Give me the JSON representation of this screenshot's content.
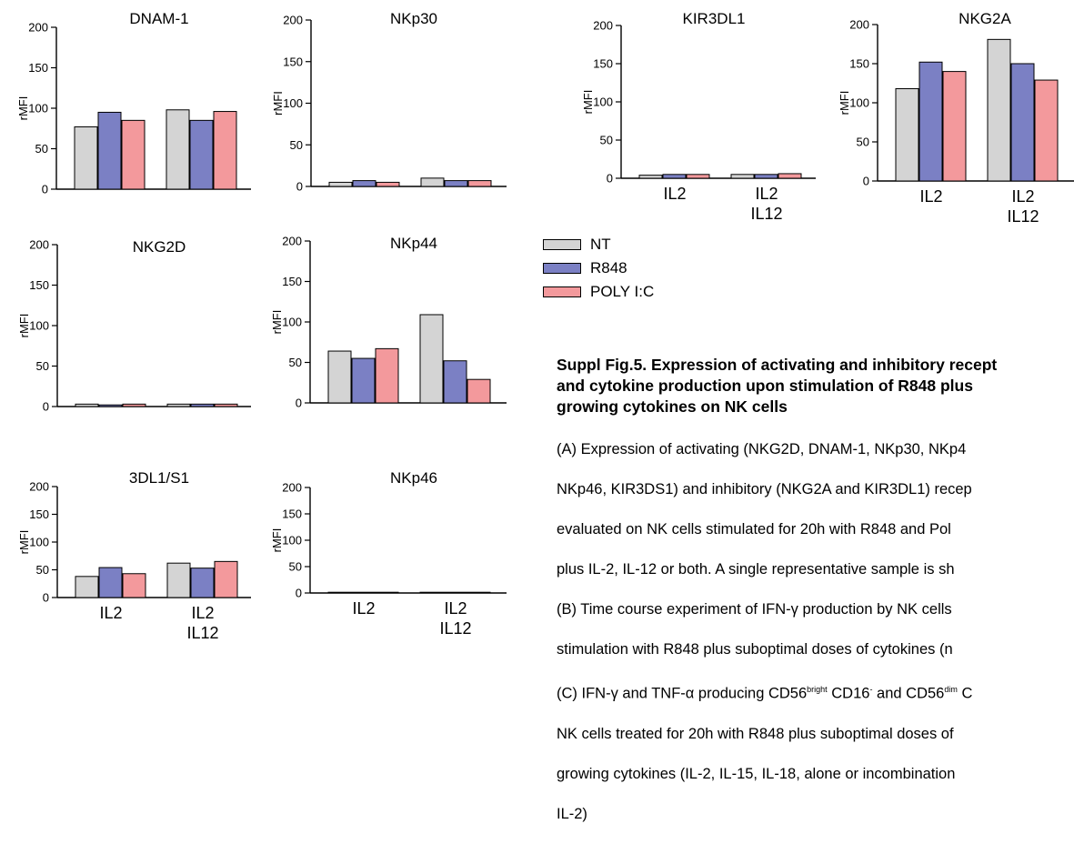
{
  "colors": {
    "NT": "#d4d4d4",
    "R848": "#7b80c4",
    "POLY I:C": "#f3999c"
  },
  "legend": {
    "items": [
      "NT",
      "R848",
      "POLY I:C"
    ]
  },
  "chart_data": [
    {
      "type": "bar",
      "title": "DNAM-1",
      "ylabel": "rMFI",
      "ylim": [
        0,
        200
      ],
      "yticks": [
        0,
        50,
        100,
        150,
        200
      ],
      "categories": [
        [
          "IL2"
        ],
        [
          "IL2",
          "IL12"
        ]
      ],
      "show_xlabels": false,
      "series": [
        {
          "name": "NT",
          "values": [
            77,
            98
          ]
        },
        {
          "name": "R848",
          "values": [
            95,
            85
          ]
        },
        {
          "name": "POLY I:C",
          "values": [
            85,
            96
          ]
        }
      ]
    },
    {
      "type": "bar",
      "title": "NKp30",
      "ylabel": "rMFI",
      "ylim": [
        0,
        200
      ],
      "yticks": [
        0,
        50,
        100,
        150,
        200
      ],
      "categories": [
        [
          "IL2"
        ],
        [
          "IL2",
          "IL12"
        ]
      ],
      "show_xlabels": false,
      "series": [
        {
          "name": "NT",
          "values": [
            5,
            10
          ]
        },
        {
          "name": "R848",
          "values": [
            7,
            7
          ]
        },
        {
          "name": "POLY I:C",
          "values": [
            5,
            7
          ]
        }
      ]
    },
    {
      "type": "bar",
      "title": "KIR3DL1",
      "ylabel": "rMFI",
      "ylim": [
        0,
        200
      ],
      "yticks": [
        0,
        50,
        100,
        150,
        200
      ],
      "categories": [
        [
          "IL2"
        ],
        [
          "IL2",
          "IL12"
        ]
      ],
      "show_xlabels": true,
      "series": [
        {
          "name": "NT",
          "values": [
            4,
            5
          ]
        },
        {
          "name": "R848",
          "values": [
            5,
            5
          ]
        },
        {
          "name": "POLY I:C",
          "values": [
            5,
            6
          ]
        }
      ]
    },
    {
      "type": "bar",
      "title": "NKG2A",
      "ylabel": "rMFI",
      "ylim": [
        0,
        200
      ],
      "yticks": [
        0,
        50,
        100,
        150,
        200
      ],
      "categories": [
        [
          "IL2"
        ],
        [
          "IL2",
          "IL12"
        ]
      ],
      "show_xlabels": true,
      "series": [
        {
          "name": "NT",
          "values": [
            118,
            181
          ]
        },
        {
          "name": "R848",
          "values": [
            152,
            150
          ]
        },
        {
          "name": "POLY I:C",
          "values": [
            140,
            129
          ]
        }
      ]
    },
    {
      "type": "bar",
      "title": "NKG2D",
      "ylabel": "rMFI",
      "ylim": [
        0,
        200
      ],
      "yticks": [
        0,
        50,
        100,
        150,
        200
      ],
      "categories": [
        [
          "IL2"
        ],
        [
          "IL2",
          "IL12"
        ]
      ],
      "show_xlabels": false,
      "series": [
        {
          "name": "NT",
          "values": [
            3,
            3
          ]
        },
        {
          "name": "R848",
          "values": [
            2,
            3
          ]
        },
        {
          "name": "POLY I:C",
          "values": [
            3,
            3
          ]
        }
      ]
    },
    {
      "type": "bar",
      "title": "NKp44",
      "ylabel": "rMFI",
      "ylim": [
        0,
        200
      ],
      "yticks": [
        0,
        50,
        100,
        150,
        200
      ],
      "categories": [
        [
          "IL2"
        ],
        [
          "IL2",
          "IL12"
        ]
      ],
      "show_xlabels": false,
      "series": [
        {
          "name": "NT",
          "values": [
            64,
            109
          ]
        },
        {
          "name": "R848",
          "values": [
            55,
            52
          ]
        },
        {
          "name": "POLY I:C",
          "values": [
            67,
            29
          ]
        }
      ]
    },
    {
      "type": "bar",
      "title": "3DL1/S1",
      "ylabel": "rMFI",
      "ylim": [
        0,
        200
      ],
      "yticks": [
        0,
        50,
        100,
        150,
        200
      ],
      "categories": [
        [
          "IL2"
        ],
        [
          "IL2",
          "IL12"
        ]
      ],
      "show_xlabels": true,
      "series": [
        {
          "name": "NT",
          "values": [
            38,
            62
          ]
        },
        {
          "name": "R848",
          "values": [
            54,
            53
          ]
        },
        {
          "name": "POLY I:C",
          "values": [
            43,
            65
          ]
        }
      ]
    },
    {
      "type": "bar",
      "title": "NKp46",
      "ylabel": "rMFI",
      "ylim": [
        0,
        200
      ],
      "yticks": [
        0,
        50,
        100,
        150,
        200
      ],
      "categories": [
        [
          "IL2"
        ],
        [
          "IL2",
          "IL12"
        ]
      ],
      "show_xlabels": true,
      "series": [
        {
          "name": "NT",
          "values": [
            0.5,
            0.5
          ]
        },
        {
          "name": "R848",
          "values": [
            0.5,
            0.5
          ]
        },
        {
          "name": "POLY I:C",
          "values": [
            0.5,
            0.5
          ]
        }
      ]
    }
  ],
  "caption": {
    "title": "Suppl Fig.5. Expression of activating and inhibitory recept\nand cytokine production upon stimulation of R848 plus\ngrowing cytokines on NK cells",
    "line1": "(A) Expression of activating (NKG2D, DNAM-1, NKp30, NKp4",
    "line2": "NKp46, KIR3DS1) and inhibitory (NKG2A and KIR3DL1) recep",
    "line3": "evaluated on NK cells stimulated for 20h with R848 and Pol",
    "line4": "plus IL-2, IL-12 or both. A single representative sample is sh",
    "line5": "(B) Time course experiment of IFN-γ production by NK cells",
    "line6": "stimulation with R848 plus suboptimal doses of cytokines (n",
    "line7_a": "(C) IFN-γ and TNF-α producing CD56",
    "line7_sup1": "bright",
    "line7_b": " CD16",
    "line7_sup2": "-",
    "line7_c": " and CD56",
    "line7_sup3": "dim",
    "line7_d": " C",
    "line8": "NK cells treated for 20h with R848 plus suboptimal doses of",
    "line9": "growing cytokines (IL-2, IL-15, IL-18, alone or incombination",
    "line10": "IL-2)"
  }
}
